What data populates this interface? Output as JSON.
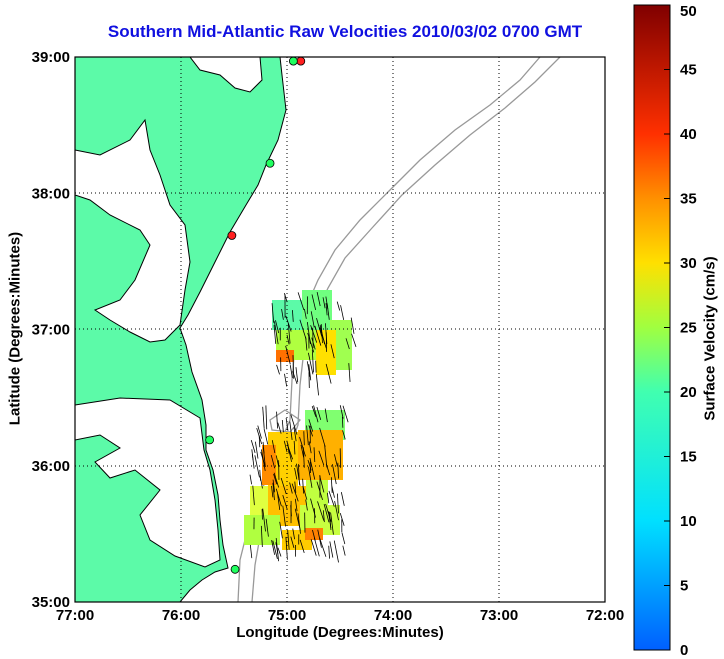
{
  "title": "Southern Mid-Atlantic Raw Velocities 2010/03/02 0700 GMT",
  "xlabel": "Longitude (Degrees:Minutes)",
  "ylabel": "Latitude (Degrees:Minutes)",
  "colorbar": {
    "label": "Surface Velocity (cm/s)",
    "min": 0,
    "max": 50,
    "ticks": [
      0,
      5,
      10,
      15,
      20,
      25,
      30,
      35,
      40,
      45,
      50
    ]
  },
  "chart_data": {
    "type": "map",
    "xlim": [
      -77,
      -72
    ],
    "ylim": [
      35,
      39
    ],
    "x_ticks": [
      {
        "value": -77,
        "label": "77:00"
      },
      {
        "value": -76,
        "label": "76:00"
      },
      {
        "value": -75,
        "label": "75:00"
      },
      {
        "value": -74,
        "label": "74:00"
      },
      {
        "value": -73,
        "label": "73:00"
      },
      {
        "value": -72,
        "label": "72:00"
      }
    ],
    "y_ticks": [
      {
        "value": 35,
        "label": "35:00"
      },
      {
        "value": 36,
        "label": "36:00"
      },
      {
        "value": 37,
        "label": "37:00"
      },
      {
        "value": 38,
        "label": "38:00"
      },
      {
        "value": 39,
        "label": "39:00"
      }
    ],
    "grid": true,
    "colors": {
      "land": "#5cfaa8",
      "bathymetry": "#999999",
      "grid": "#000000"
    },
    "stations": [
      {
        "lon": -74.87,
        "lat": 38.97,
        "color": "#ff2020"
      },
      {
        "lon": -74.94,
        "lat": 38.97,
        "color": "#20ff60"
      },
      {
        "lon": -75.16,
        "lat": 38.22,
        "color": "#20ff60"
      },
      {
        "lon": -75.52,
        "lat": 37.69,
        "color": "#ff2020"
      },
      {
        "lon": -75.73,
        "lat": 36.19,
        "color": "#20ff60"
      },
      {
        "lon": -75.49,
        "lat": 35.24,
        "color": "#20ff60"
      }
    ]
  }
}
